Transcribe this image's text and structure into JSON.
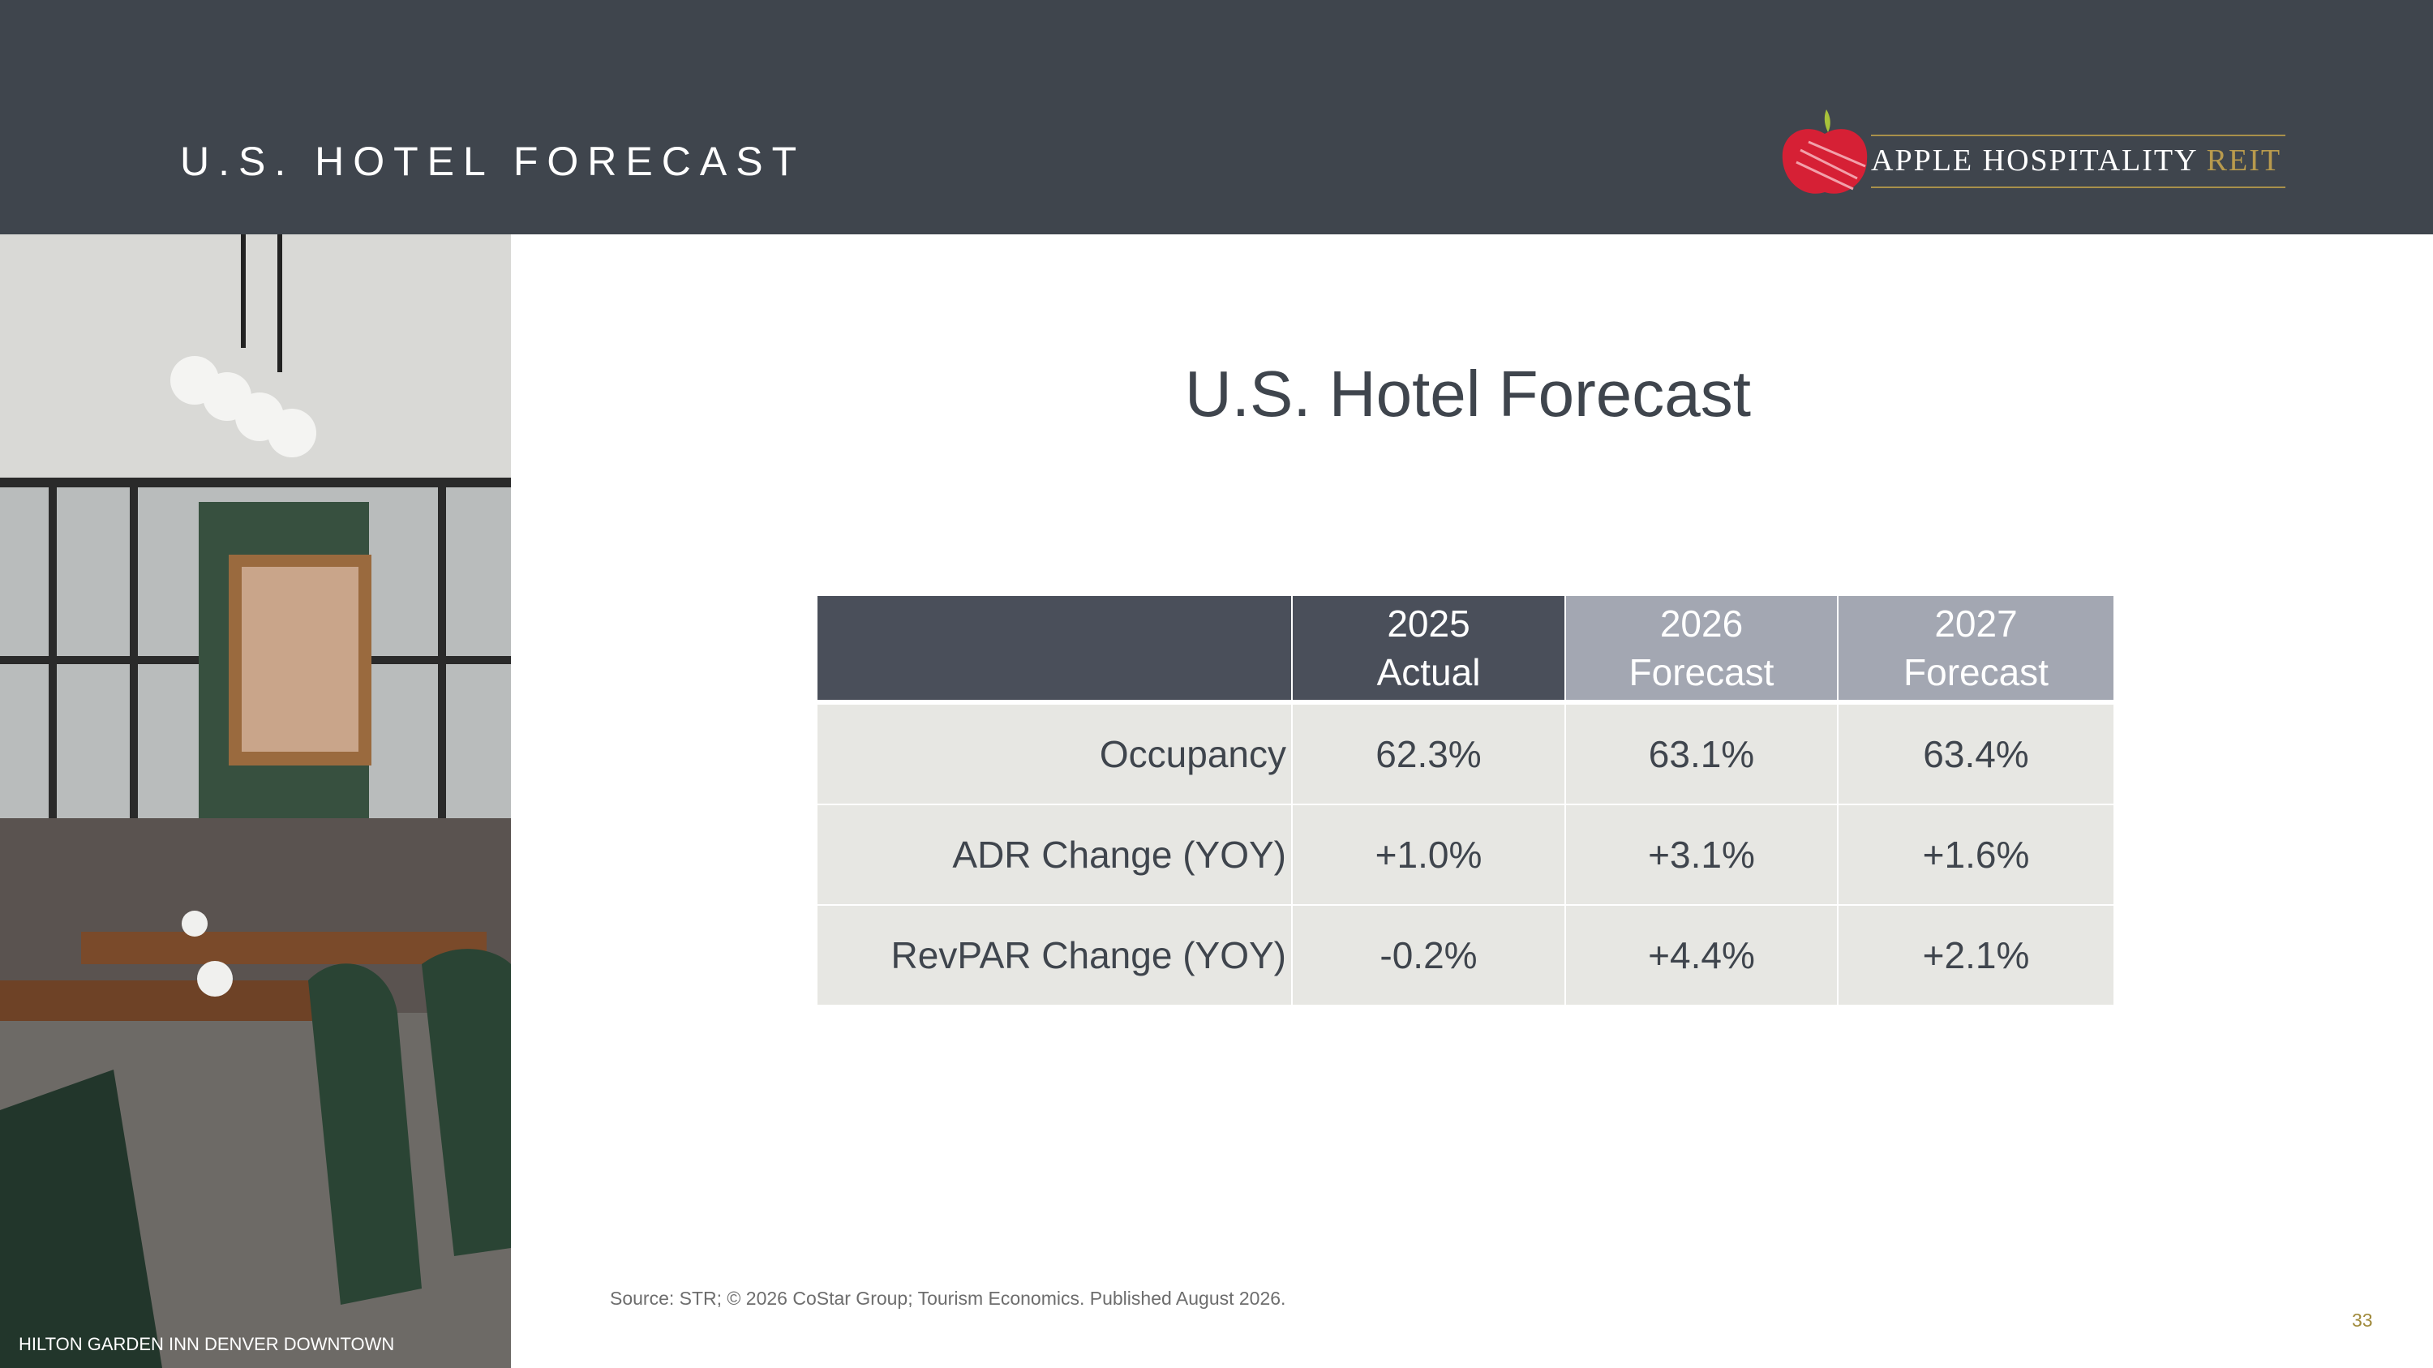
{
  "header": {
    "title": "U.S. HOTEL FORECAST"
  },
  "logo": {
    "name": "APPLE HOSPITALITY",
    "suffix": "REIT"
  },
  "photo": {
    "caption": "HILTON GARDEN INN DENVER DOWNTOWN"
  },
  "title": "U.S. Hotel Forecast",
  "table": {
    "columns": [
      {
        "year": "2025",
        "label": "Actual"
      },
      {
        "year": "2026",
        "label": "Forecast"
      },
      {
        "year": "2027",
        "label": "Forecast"
      }
    ],
    "rows": [
      [
        "Occupancy",
        "62.3%",
        "63.1%",
        "63.4%"
      ],
      [
        "ADR Change (YOY)",
        "+1.0%",
        "+3.1%",
        "+1.6%"
      ],
      [
        "RevPAR Change (YOY)",
        "-0.2%",
        "+4.4%",
        "+2.1%"
      ]
    ]
  },
  "source": "Source: STR; © 2026 CoStar Group; Tourism Economics. Published August 2026.",
  "page_number": "33"
}
